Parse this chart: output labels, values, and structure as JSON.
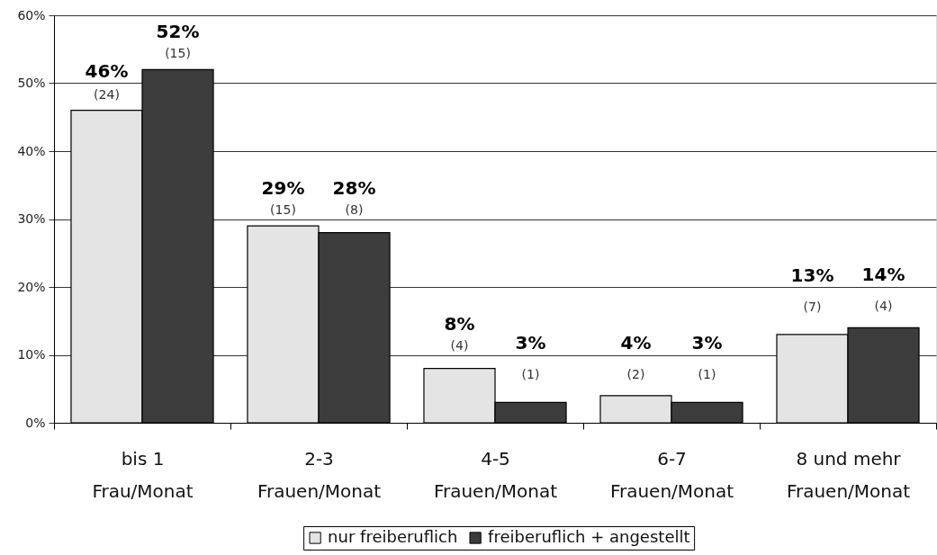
{
  "chart_data": {
    "type": "bar",
    "categories": [
      "bis 1 Frau/Monat",
      "2-3 Frauen/Monat",
      "4-5 Frauen/Monat",
      "6-7 Frauen/Monat",
      "8 und mehr Frauen/Monat"
    ],
    "series": [
      {
        "name": "nur freiberuflich",
        "color": "#e4e4e4",
        "values": [
          46,
          29,
          8,
          4,
          13
        ],
        "value_labels": [
          "46% (24)",
          "29% (15)",
          "8% (4)",
          "4% (2)",
          "13% (7)"
        ]
      },
      {
        "name": "freiberuflich + angestellt",
        "color": "#3c3c3c",
        "values": [
          52,
          28,
          3,
          3,
          14
        ],
        "value_labels": [
          "52% (15)",
          "28% (8)",
          "3% (1)",
          "3% (1)",
          "14% (4)"
        ]
      }
    ],
    "ylim": [
      0,
      60
    ],
    "yticks": [
      {
        "value": 0,
        "label": "0%"
      },
      {
        "value": 10,
        "label": "10%"
      },
      {
        "value": 20,
        "label": "20%"
      },
      {
        "value": 30,
        "label": "30%"
      },
      {
        "value": 40,
        "label": "40%"
      },
      {
        "value": 50,
        "label": "50%"
      },
      {
        "value": 60,
        "label": "60%"
      }
    ],
    "grid": "y",
    "legend": "bottom"
  }
}
